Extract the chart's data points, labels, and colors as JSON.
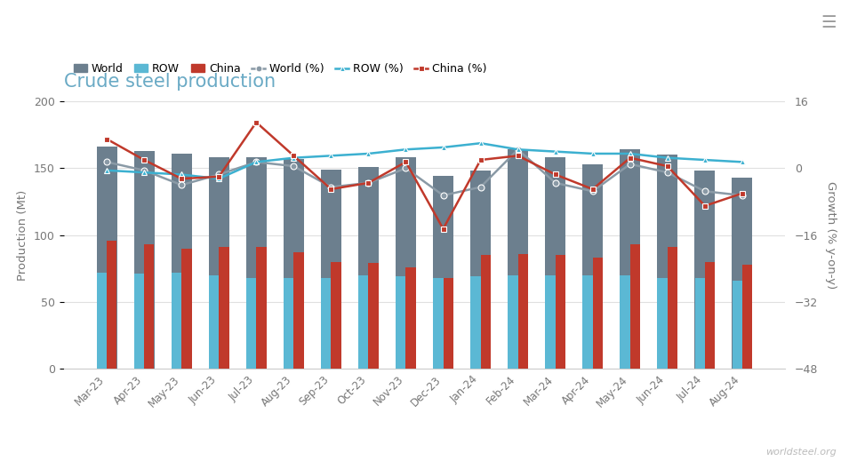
{
  "title": "Crude steel production",
  "categories": [
    "Mar-23",
    "Apr-23",
    "May-23",
    "Jun-23",
    "Jul-23",
    "Aug-23",
    "Sep-23",
    "Oct-23",
    "Nov-23",
    "Dec-23",
    "Jan-24",
    "Feb-24",
    "Mar-24",
    "Apr-24",
    "May-24",
    "Jun-24",
    "Jul-24",
    "Aug-24"
  ],
  "world_bars": [
    166,
    163,
    161,
    158,
    158,
    157,
    149,
    151,
    158,
    144,
    148,
    164,
    158,
    153,
    164,
    160,
    148,
    143
  ],
  "row_bars": [
    72,
    71,
    72,
    70,
    68,
    68,
    68,
    70,
    69,
    68,
    69,
    70,
    70,
    70,
    70,
    68,
    68,
    66
  ],
  "china_bars": [
    96,
    93,
    90,
    91,
    91,
    87,
    80,
    79,
    76,
    68,
    85,
    86,
    85,
    83,
    93,
    91,
    80,
    78
  ],
  "world_pct": [
    1.5,
    -0.5,
    -4.0,
    -1.5,
    1.5,
    0.5,
    -4.5,
    -3.5,
    0.0,
    -6.5,
    -4.5,
    4.5,
    -3.5,
    -5.5,
    1.0,
    -1.0,
    -5.5,
    -6.5
  ],
  "row_pct": [
    -0.5,
    -1.0,
    -1.5,
    -2.5,
    1.5,
    2.5,
    3.0,
    3.5,
    4.5,
    5.0,
    6.0,
    4.5,
    4.0,
    3.5,
    3.5,
    2.5,
    2.0,
    1.5
  ],
  "china_pct": [
    7.0,
    2.0,
    -2.5,
    -2.0,
    11.0,
    3.0,
    -5.0,
    -3.5,
    1.5,
    -14.5,
    2.0,
    3.0,
    -1.5,
    -5.0,
    2.5,
    0.5,
    -9.0,
    -6.0
  ],
  "world_bar_color": "#6c7f8e",
  "row_bar_color": "#5bb8d4",
  "china_bar_color": "#c0392b",
  "world_pct_color": "#8a9aa6",
  "row_pct_color": "#3cb0d0",
  "china_pct_color": "#c0392b",
  "bg_color": "#ffffff",
  "title_color": "#6aaac5",
  "left_ylim": [
    0,
    200
  ],
  "right_ylim": [
    -48,
    16
  ],
  "left_yticks": [
    0,
    50,
    100,
    150,
    200
  ],
  "right_yticks": [
    -48,
    -32,
    -16,
    0,
    16
  ],
  "ylabel_left": "Production (Mt)",
  "ylabel_right": "Growth (% y-on-y)",
  "watermark": "worldsteel.org"
}
